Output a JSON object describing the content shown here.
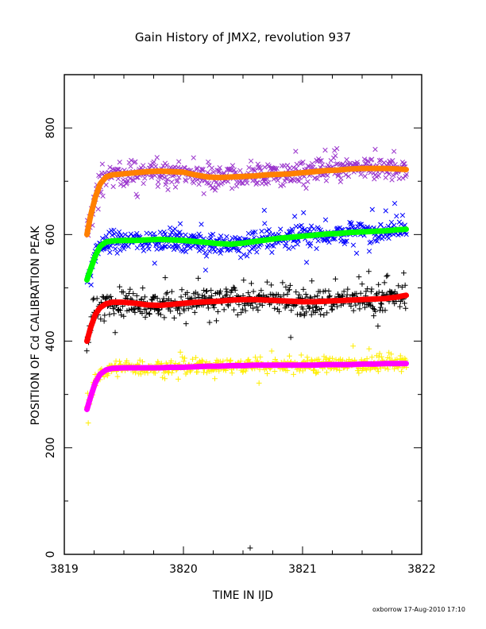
{
  "chart_data": {
    "type": "scatter",
    "title": "Gain History of JMX2, revolution 937",
    "xlabel": "TIME IN IJD",
    "ylabel": "POSITION OF Cd CALIBRATION PEAK",
    "xlim": [
      3819,
      3822
    ],
    "ylim": [
      0,
      900
    ],
    "xticks": [
      3819,
      3820,
      3821,
      3822
    ],
    "yticks": [
      0,
      200,
      400,
      600,
      800
    ],
    "x_minor_step": 0.25,
    "y_minor_step": 100,
    "grid": false,
    "legend": "none",
    "footer": "oxborrow 17-Aug-2010 17:10",
    "series": [
      {
        "marker": "x",
        "color": "#9933cc",
        "jitter": 22,
        "x": [
          3819.19,
          3819.22,
          3819.26,
          3819.3,
          3819.35,
          3819.4,
          3819.5,
          3819.6,
          3819.7,
          3819.8,
          3819.9,
          3820.0,
          3820.1,
          3820.2,
          3820.3,
          3820.4,
          3820.5,
          3820.6,
          3820.7,
          3820.8,
          3820.9,
          3821.0,
          3821.1,
          3821.2,
          3821.3,
          3821.4,
          3821.5,
          3821.6,
          3821.7,
          3821.8,
          3821.87
        ],
        "y": [
          600,
          635,
          670,
          695,
          708,
          712,
          714,
          716,
          718,
          719,
          718,
          717,
          712,
          708,
          707,
          708,
          709,
          710,
          712,
          713,
          714,
          716,
          718,
          720,
          721,
          723,
          724,
          724,
          724,
          723,
          722
        ]
      },
      {
        "marker": "x",
        "color": "#0000ff",
        "jitter": 20,
        "x": [
          3819.19,
          3819.22,
          3819.26,
          3819.3,
          3819.35,
          3819.4,
          3819.5,
          3819.6,
          3819.7,
          3819.8,
          3819.9,
          3820.0,
          3820.1,
          3820.2,
          3820.3,
          3820.4,
          3820.5,
          3820.6,
          3820.7,
          3820.8,
          3820.9,
          3821.0,
          3821.1,
          3821.2,
          3821.3,
          3821.4,
          3821.5,
          3821.6,
          3821.7,
          3821.8,
          3821.87
        ],
        "y": [
          515,
          535,
          560,
          578,
          586,
          588,
          589,
          589,
          590,
          591,
          590,
          589,
          587,
          585,
          583,
          582,
          584,
          587,
          590,
          593,
          595,
          597,
          599,
          601,
          602,
          604,
          605,
          606,
          607,
          609,
          610
        ]
      },
      {
        "marker": "+",
        "color": "#000000",
        "jitter": 24,
        "x": [
          3819.19,
          3819.22,
          3819.26,
          3819.3,
          3819.35,
          3819.4,
          3819.5,
          3819.6,
          3819.7,
          3819.8,
          3819.9,
          3820.0,
          3820.1,
          3820.2,
          3820.3,
          3820.4,
          3820.5,
          3820.6,
          3820.7,
          3820.8,
          3820.9,
          3821.0,
          3821.1,
          3821.2,
          3821.3,
          3821.4,
          3821.5,
          3821.6,
          3821.7,
          3821.8,
          3821.87
        ],
        "y": [
          400,
          425,
          450,
          463,
          470,
          473,
          473,
          471,
          468,
          467,
          469,
          471,
          473,
          474,
          475,
          477,
          478,
          478,
          477,
          476,
          475,
          474,
          474,
          475,
          476,
          477,
          478,
          479,
          480,
          483,
          486
        ]
      },
      {
        "marker": "+",
        "color": "#ffee00",
        "jitter": 14,
        "x": [
          3819.19,
          3819.22,
          3819.26,
          3819.3,
          3819.35,
          3819.4,
          3819.5,
          3819.6,
          3819.7,
          3819.8,
          3819.9,
          3820.0,
          3820.1,
          3820.2,
          3820.3,
          3820.4,
          3820.5,
          3820.6,
          3820.7,
          3820.8,
          3820.9,
          3821.0,
          3821.1,
          3821.2,
          3821.3,
          3821.4,
          3821.5,
          3821.6,
          3821.7,
          3821.8,
          3821.87
        ],
        "y": [
          272,
          295,
          322,
          338,
          346,
          349,
          350,
          350,
          350,
          350,
          351,
          351,
          352,
          353,
          353,
          354,
          354,
          355,
          355,
          355,
          355,
          355,
          355,
          356,
          356,
          356,
          357,
          357,
          358,
          358,
          358
        ]
      },
      {
        "marker": "+",
        "color": "#000000",
        "jitter": 0,
        "x": [
          3820.56
        ],
        "y": [
          12
        ]
      }
    ],
    "fits": [
      {
        "color": "#ff8000",
        "ref": 0
      },
      {
        "color": "#00ff00",
        "ref": 1
      },
      {
        "color": "#ff0000",
        "ref": 2
      },
      {
        "color": "#ff00ff",
        "ref": 3
      }
    ]
  }
}
